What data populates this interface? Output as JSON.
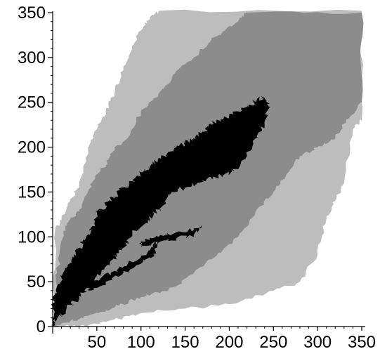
{
  "chart_data": {
    "type": "area",
    "title": "",
    "xlabel": "",
    "ylabel": "",
    "xlim": [
      0,
      350
    ],
    "ylim": [
      0,
      350
    ],
    "x_ticks": [
      50,
      100,
      150,
      200,
      250,
      300,
      350
    ],
    "y_ticks": [
      0,
      50,
      100,
      150,
      200,
      250,
      300,
      350
    ],
    "x_tick_labels": [
      "50",
      "100",
      "150",
      "200",
      "250",
      "300",
      "350"
    ],
    "y_tick_labels": [
      "0",
      "50",
      "100",
      "150",
      "200",
      "250",
      "300",
      "350"
    ],
    "grid": false,
    "legend": "none",
    "series": [
      {
        "color": "#bdbdbd",
        "region": [
          [
            0,
            0
          ],
          [
            0,
            20
          ],
          [
            3,
            110
          ],
          [
            10,
            120
          ],
          [
            20,
            140
          ],
          [
            30,
            155
          ],
          [
            40,
            200
          ],
          [
            50,
            220
          ],
          [
            60,
            240
          ],
          [
            70,
            260
          ],
          [
            80,
            290
          ],
          [
            90,
            310
          ],
          [
            100,
            330
          ],
          [
            110,
            345
          ],
          [
            120,
            352
          ],
          [
            350,
            352
          ],
          [
            350,
            230
          ],
          [
            340,
            220
          ],
          [
            330,
            160
          ],
          [
            320,
            140
          ],
          [
            310,
            120
          ],
          [
            300,
            80
          ],
          [
            280,
            50
          ],
          [
            250,
            40
          ],
          [
            200,
            25
          ],
          [
            150,
            20
          ],
          [
            100,
            15
          ],
          [
            80,
            10
          ],
          [
            50,
            3
          ],
          [
            20,
            0
          ]
        ]
      },
      {
        "color": "#8c8c8c",
        "region": [
          [
            0,
            0
          ],
          [
            2,
            30
          ],
          [
            5,
            60
          ],
          [
            12,
            100
          ],
          [
            20,
            120
          ],
          [
            30,
            130
          ],
          [
            40,
            150
          ],
          [
            50,
            170
          ],
          [
            60,
            180
          ],
          [
            70,
            200
          ],
          [
            85,
            210
          ],
          [
            100,
            240
          ],
          [
            120,
            260
          ],
          [
            140,
            285
          ],
          [
            160,
            300
          ],
          [
            180,
            320
          ],
          [
            195,
            330
          ],
          [
            210,
            340
          ],
          [
            220,
            350
          ],
          [
            350,
            350
          ],
          [
            350,
            250
          ],
          [
            335,
            232
          ],
          [
            320,
            210
          ],
          [
            300,
            200
          ],
          [
            280,
            190
          ],
          [
            265,
            170
          ],
          [
            250,
            150
          ],
          [
            230,
            128
          ],
          [
            210,
            100
          ],
          [
            180,
            75
          ],
          [
            160,
            60
          ],
          [
            140,
            45
          ],
          [
            120,
            38
          ],
          [
            100,
            33
          ],
          [
            80,
            25
          ],
          [
            60,
            18
          ],
          [
            40,
            12
          ],
          [
            20,
            6
          ]
        ]
      },
      {
        "color": "#000000",
        "region": [
          [
            0,
            0
          ],
          [
            0,
            30
          ],
          [
            8,
            48
          ],
          [
            15,
            65
          ],
          [
            22,
            78
          ],
          [
            30,
            88
          ],
          [
            38,
            100
          ],
          [
            45,
            112
          ],
          [
            52,
            130
          ],
          [
            60,
            135
          ],
          [
            70,
            145
          ],
          [
            80,
            155
          ],
          [
            90,
            162
          ],
          [
            100,
            172
          ],
          [
            110,
            178
          ],
          [
            120,
            188
          ],
          [
            130,
            193
          ],
          [
            140,
            200
          ],
          [
            150,
            205
          ],
          [
            160,
            210
          ],
          [
            170,
            218
          ],
          [
            180,
            225
          ],
          [
            190,
            230
          ],
          [
            200,
            235
          ],
          [
            210,
            240
          ],
          [
            220,
            245
          ],
          [
            230,
            252
          ],
          [
            240,
            255
          ],
          [
            245,
            245
          ],
          [
            240,
            225
          ],
          [
            230,
            210
          ],
          [
            220,
            190
          ],
          [
            210,
            175
          ],
          [
            195,
            170
          ],
          [
            180,
            165
          ],
          [
            165,
            160
          ],
          [
            150,
            155
          ],
          [
            135,
            150
          ],
          [
            125,
            135
          ],
          [
            115,
            125
          ],
          [
            105,
            115
          ],
          [
            95,
            108
          ],
          [
            85,
            95
          ],
          [
            75,
            82
          ],
          [
            65,
            72
          ],
          [
            55,
            60
          ],
          [
            45,
            48
          ],
          [
            35,
            38
          ],
          [
            25,
            28
          ],
          [
            15,
            18
          ],
          [
            5,
            8
          ]
        ]
      },
      {
        "color": "#000000",
        "region": [
          [
            100,
            95
          ],
          [
            120,
            100
          ],
          [
            140,
            105
          ],
          [
            160,
            108
          ],
          [
            168,
            112
          ],
          [
            160,
            102
          ],
          [
            140,
            98
          ],
          [
            120,
            94
          ],
          [
            100,
            90
          ]
        ]
      },
      {
        "color": "#000000",
        "region": [
          [
            40,
            40
          ],
          [
            60,
            50
          ],
          [
            80,
            60
          ],
          [
            100,
            70
          ],
          [
            115,
            80
          ],
          [
            120,
            95
          ],
          [
            110,
            85
          ],
          [
            90,
            72
          ],
          [
            70,
            62
          ],
          [
            50,
            52
          ],
          [
            40,
            46
          ]
        ]
      }
    ]
  }
}
